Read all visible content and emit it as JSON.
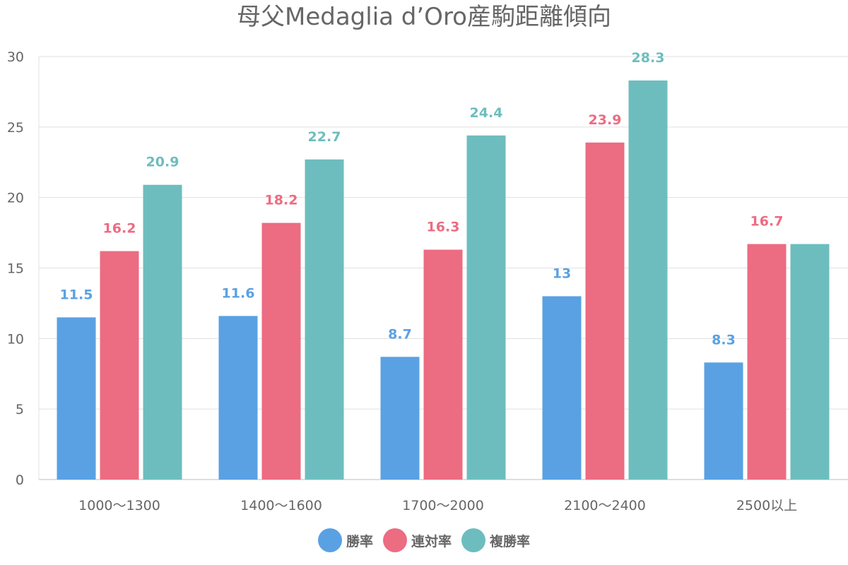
{
  "chart_data": {
    "type": "bar",
    "title": "母父Medaglia d’Oro産駒距離傾向",
    "categories": [
      "1000〜1300",
      "1400〜1600",
      "1700〜2000",
      "2100〜2400",
      "2500以上"
    ],
    "series": [
      {
        "name": "勝率",
        "color": "#5aa1e3",
        "values": [
          11.5,
          11.6,
          8.7,
          13,
          8.3
        ],
        "labels": [
          "11.5",
          "11.6",
          "8.7",
          "13",
          "8.3"
        ]
      },
      {
        "name": "連対率",
        "color": "#ec6c82",
        "values": [
          16.2,
          18.2,
          16.3,
          23.9,
          16.7
        ],
        "labels": [
          "16.2",
          "18.2",
          "16.3",
          "23.9",
          "16.7"
        ]
      },
      {
        "name": "複勝率",
        "color": "#6dbdbf",
        "values": [
          20.9,
          22.7,
          24.4,
          28.3,
          16.7
        ],
        "labels": [
          "20.9",
          "22.7",
          "24.4",
          "28.3",
          null
        ]
      }
    ],
    "yticks": [
      "0",
      "5",
      "10",
      "15",
      "20",
      "25",
      "30"
    ],
    "ylim": [
      0,
      30
    ],
    "grid": true,
    "legend": "bottom"
  }
}
